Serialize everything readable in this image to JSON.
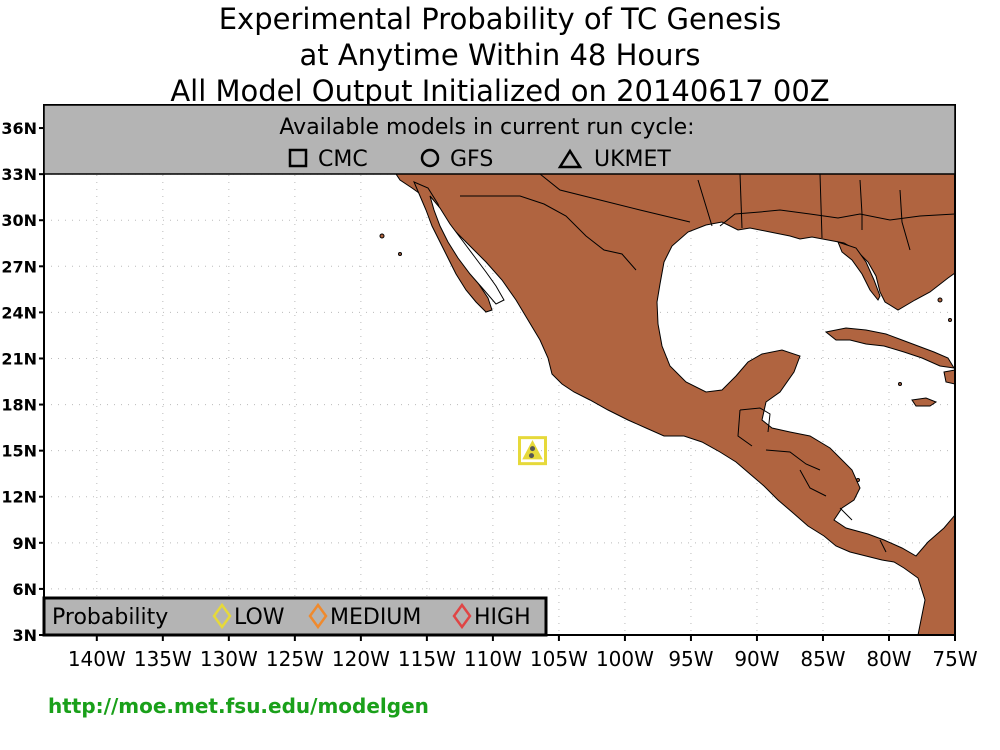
{
  "title": {
    "line1": "Experimental Probability of TC Genesis",
    "line2": "at Anytime Within 48 Hours",
    "line3": "All Model Output Initialized on 20140617 00Z"
  },
  "models_box": {
    "heading": "Available models in current run cycle:",
    "models": [
      {
        "name": "CMC",
        "symbol": "square-icon"
      },
      {
        "name": "GFS",
        "symbol": "circle-icon"
      },
      {
        "name": "UKMET",
        "symbol": "triangle-icon"
      }
    ]
  },
  "legend": {
    "title": "Probability",
    "items": [
      {
        "label": "LOW",
        "color": "#e6d93a",
        "symbol": "diamond-icon"
      },
      {
        "label": "MEDIUM",
        "color": "#ef8a2e",
        "symbol": "diamond-icon"
      },
      {
        "label": "HIGH",
        "color": "#e04545",
        "symbol": "diamond-icon"
      }
    ]
  },
  "axes": {
    "lat_labels": [
      "3N",
      "6N",
      "9N",
      "12N",
      "15N",
      "18N",
      "21N",
      "24N",
      "27N",
      "30N",
      "33N",
      "36N"
    ],
    "lon_labels": [
      "140W",
      "135W",
      "130W",
      "125W",
      "120W",
      "115W",
      "110W",
      "105W",
      "100W",
      "95W",
      "90W",
      "85W",
      "80W",
      "75W"
    ],
    "lat_range": [
      3,
      37.5
    ],
    "lon_range": [
      -144,
      -75
    ]
  },
  "genesis_markers": [
    {
      "lat": 15.0,
      "lon": -107.0,
      "model": "UKMET",
      "probability": "LOW",
      "color": "#e6d93a"
    }
  ],
  "colors": {
    "land": "#b06440",
    "header_box": "#b4b4b4",
    "url": "#1aa01a"
  },
  "url": "http://moe.met.fsu.edu/modelgen"
}
